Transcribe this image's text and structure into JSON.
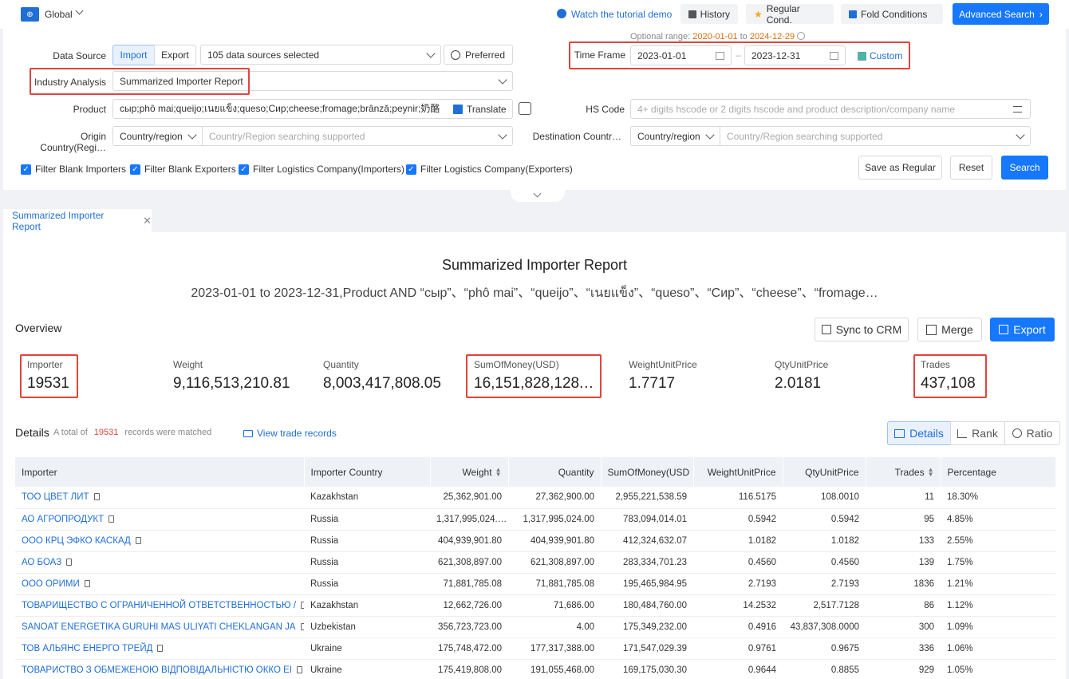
{
  "topbar": {
    "region": "Global",
    "tutorial": "Watch the tutorial demo",
    "history": "History",
    "regular_cond": "Regular Cond.",
    "fold": "Fold Conditions",
    "advanced": "Advanced Search"
  },
  "form": {
    "optional_range_label": "Optional range:",
    "optional_from": "2020-01-01",
    "optional_to_word": "to",
    "optional_to": "2024-12-29",
    "data_source_label": "Data Source",
    "import_label": "Import",
    "export_label": "Export",
    "sources_selected": "105 data sources selected",
    "preferred": "Preferred",
    "time_frame_label": "Time Frame",
    "date_from": "2023-01-01",
    "date_to": "2023-12-31",
    "custom": "Custom",
    "industry_label": "Industry Analysis",
    "industry_value": "Summarized Importer Report",
    "product_label": "Product",
    "product_value": "сыр;phô mai;queijo;เนยแข็ง;queso;Сир;cheese;fromage;brânză;peynir;奶酪",
    "translate": "Translate",
    "hs_label": "HS Code",
    "hs_placeholder": "4+ digits hscode or 2 digits hscode and product description/company name",
    "origin_label": "Origin Country(Regi…",
    "origin_select": "Country/region",
    "origin_placeholder": "Country/Region searching supported",
    "dest_label": "Destination Countr…",
    "dest_select": "Country/region",
    "dest_placeholder": "Country/Region searching supported",
    "filters": [
      "Filter Blank Importers",
      "Filter Blank Exporters",
      "Filter Logistics Company(Importers)",
      "Filter Logistics Company(Exporters)"
    ],
    "save_regular": "Save as Regular",
    "reset": "Reset",
    "search": "Search"
  },
  "tab": {
    "label": "Summarized Importer Report"
  },
  "report": {
    "title": "Summarized Importer Report",
    "subtitle": "2023-01-01 to 2023-12-31,Product AND “сыр”、“phô mai”、“queijo”、“เนยแข็ง”、“queso”、“Сир”、“cheese”、“fromage…",
    "overview": "Overview",
    "sync": "Sync to CRM",
    "merge": "Merge",
    "export": "Export"
  },
  "metrics": [
    {
      "label": "Importer",
      "value": "19531"
    },
    {
      "label": "Weight",
      "value": "9,116,513,210.81"
    },
    {
      "label": "Quantity",
      "value": "8,003,417,808.05"
    },
    {
      "label": "SumOfMoney(USD)",
      "value": "16,151,828,128.…"
    },
    {
      "label": "WeightUnitPrice",
      "value": "1.7717"
    },
    {
      "label": "QtyUnitPrice",
      "value": "2.0181"
    },
    {
      "label": "Trades",
      "value": "437,108"
    }
  ],
  "details": {
    "title": "Details",
    "total_of": "A total of",
    "count": "19531",
    "matched": "records were matched",
    "view_records": "View trade records",
    "view_details": "Details",
    "view_rank": "Rank",
    "view_ratio": "Ratio"
  },
  "table": {
    "headers": [
      "Importer",
      "Importer Country",
      "Weight",
      "Quantity",
      "SumOfMoney(USD",
      "WeightUnitPrice",
      "QtyUnitPrice",
      "Trades",
      "Percentage"
    ],
    "rows": [
      [
        "ТОО ЦВЕТ ЛИТ",
        "Kazakhstan",
        "25,362,901.00",
        "27,362,900.00",
        "2,955,221,538.59",
        "116.5175",
        "108.0010",
        "11",
        "18.30%"
      ],
      [
        "АО АГРОПРОДУКТ",
        "Russia",
        "1,317,995,024.…",
        "1,317,995,024.00",
        "783,094,014.01",
        "0.5942",
        "0.5942",
        "95",
        "4.85%"
      ],
      [
        "ООО КРЦ ЭФКО КАСКАД",
        "Russia",
        "404,939,901.80",
        "404,939,901.80",
        "412,324,632.07",
        "1.0182",
        "1.0182",
        "133",
        "2.55%"
      ],
      [
        "АО БОАЗ",
        "Russia",
        "621,308,897.00",
        "621,308,897.00",
        "283,334,701.23",
        "0.4560",
        "0.4560",
        "139",
        "1.75%"
      ],
      [
        "ООО ОРИМИ",
        "Russia",
        "71,881,785.08",
        "71,881,785.08",
        "195,465,984.95",
        "2.7193",
        "2.7193",
        "1836",
        "1.21%"
      ],
      [
        "ТОВАРИЩЕСТВО С ОГРАНИЧЕННОЙ ОТВЕТСТВЕННОСТЬЮ /",
        "Kazakhstan",
        "12,662,726.00",
        "71,686.00",
        "180,484,760.00",
        "14.2532",
        "2,517.7128",
        "86",
        "1.12%"
      ],
      [
        "SANOAT ENERGETIKA GURUHI MAS ULIYATI CHEKLANGAN JA",
        "Uzbekistan",
        "356,723,723.00",
        "4.00",
        "175,349,232.00",
        "0.4916",
        "43,837,308.0000",
        "300",
        "1.09%"
      ],
      [
        "ТОВ АЛЬЯНС ЕНЕРГО ТРЕЙД",
        "Ukraine",
        "175,748,472.00",
        "177,317,388.00",
        "171,547,029.39",
        "0.9761",
        "0.9675",
        "336",
        "1.06%"
      ],
      [
        "ТОВАРИСТВО З ОБМЕЖЕНОЮ ВІДПОВІДАЛЬНІСТЮ ОККО ЕІ",
        "Ukraine",
        "175,419,808.00",
        "191,055,468.00",
        "169,175,030.30",
        "0.9644",
        "0.8855",
        "929",
        "1.05%"
      ]
    ]
  },
  "colors": {
    "accent": "#1677ff",
    "highlight": "#e0443e",
    "date_orange": "#d46b08"
  }
}
